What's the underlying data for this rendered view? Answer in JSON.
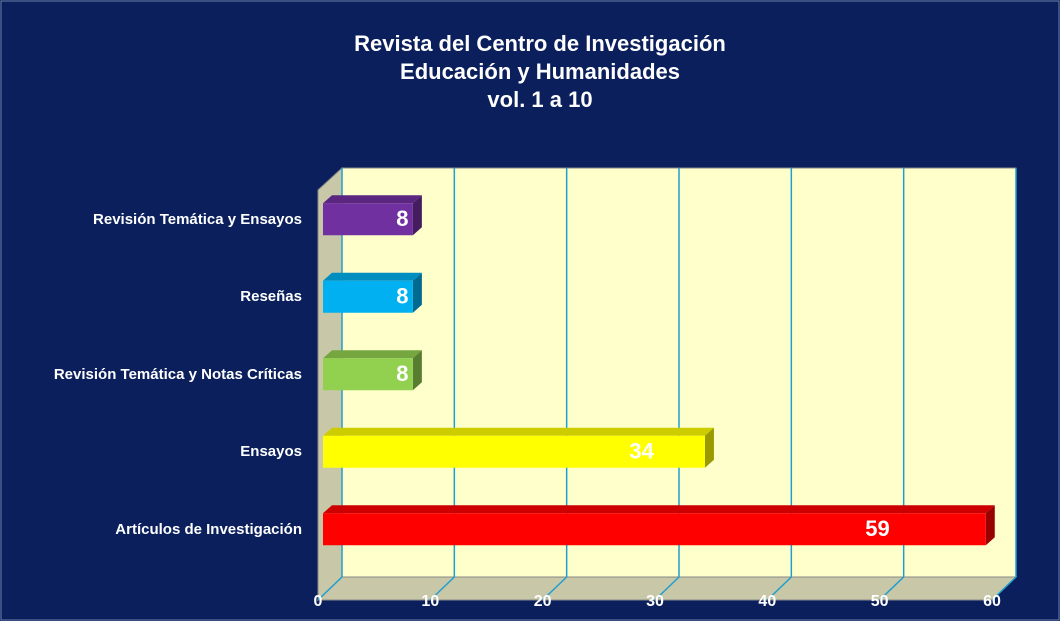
{
  "chart_data": {
    "type": "bar",
    "orientation": "horizontal",
    "three_d": true,
    "title": [
      "Revista del Centro de Investigación",
      "Educación y Humanidades",
      "vol. 1 a 10"
    ],
    "categories": [
      "Artículos de Investigación",
      "Ensayos",
      "Revisión Temática y Notas Críticas",
      "Reseñas",
      "Revisión Temática y Ensayos"
    ],
    "values": [
      59,
      34,
      8,
      8,
      8
    ],
    "colors": [
      "#ff0000",
      "#ffff00",
      "#92d050",
      "#00b0f0",
      "#7030a0"
    ],
    "xlim": [
      0,
      60
    ],
    "xticks": [
      0,
      10,
      20,
      30,
      40,
      50,
      60
    ],
    "grid": true
  }
}
